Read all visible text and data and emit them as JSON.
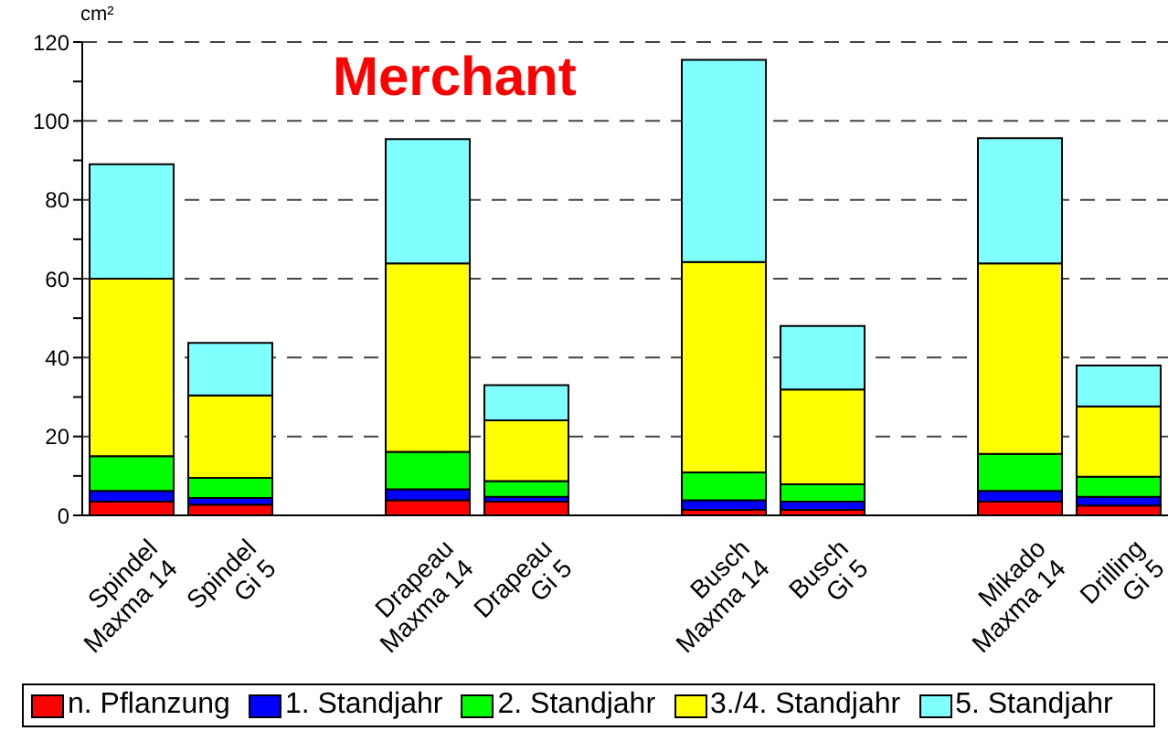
{
  "chart_data": {
    "type": "bar",
    "stacked": true,
    "ylabel": "cm²",
    "annotations": [
      "Merchant"
    ],
    "categories": [
      "Spindel\nMaxma 14",
      "Spindel\nGi 5",
      null,
      "Drapeau\nMaxma 14",
      "Drapeau\nGi 5",
      null,
      "Busch\nMaxma 14",
      "Busch\nGi 5",
      null,
      "Mikado\nMaxma 14",
      "Drilling\nGi 5"
    ],
    "series": [
      {
        "name": "n. Pflanzung",
        "color": "#ff0000",
        "values": [
          3.5,
          2.7,
          null,
          3.8,
          3.5,
          null,
          1.4,
          1.4,
          null,
          3.5,
          2.5
        ]
      },
      {
        "name": "1. Standjahr",
        "color": "#0000ff",
        "values": [
          2.7,
          1.7,
          null,
          2.8,
          1.2,
          null,
          2.4,
          2.1,
          null,
          2.7,
          2.2
        ]
      },
      {
        "name": "2. Standjahr",
        "color": "#00ff00",
        "values": [
          8.8,
          5.1,
          null,
          9.5,
          4.0,
          null,
          7.1,
          4.4,
          null,
          9.4,
          5.1
        ]
      },
      {
        "name": "3./4. Standjahr",
        "color": "#ffff00",
        "values": [
          45,
          20.9,
          null,
          47.8,
          15.4,
          null,
          53.3,
          24,
          null,
          48.3,
          17.8
        ]
      },
      {
        "name": "5. Standjahr",
        "color": "#80ffff",
        "values": [
          29,
          13.3,
          null,
          31.5,
          8.9,
          null,
          51.3,
          16.1,
          null,
          31.7,
          10.4
        ]
      }
    ],
    "ylim": [
      0,
      120
    ],
    "yticks": [
      0,
      {
        "value": 10,
        "label": null
      },
      20,
      {
        "value": 30,
        "label": null
      },
      40,
      {
        "value": 50,
        "label": null
      },
      60,
      {
        "value": 70,
        "label": null
      },
      80,
      {
        "value": 90,
        "label": null
      },
      100,
      {
        "value": 110,
        "label": null
      },
      120
    ],
    "grid": "y",
    "legend": "bottom"
  }
}
